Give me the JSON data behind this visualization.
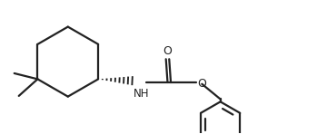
{
  "bg_color": "#ffffff",
  "line_color": "#222222",
  "line_width": 1.6,
  "figsize": [
    3.6,
    1.48
  ],
  "dpi": 100,
  "xlim": [
    0,
    10
  ],
  "ylim": [
    0,
    4.11
  ]
}
